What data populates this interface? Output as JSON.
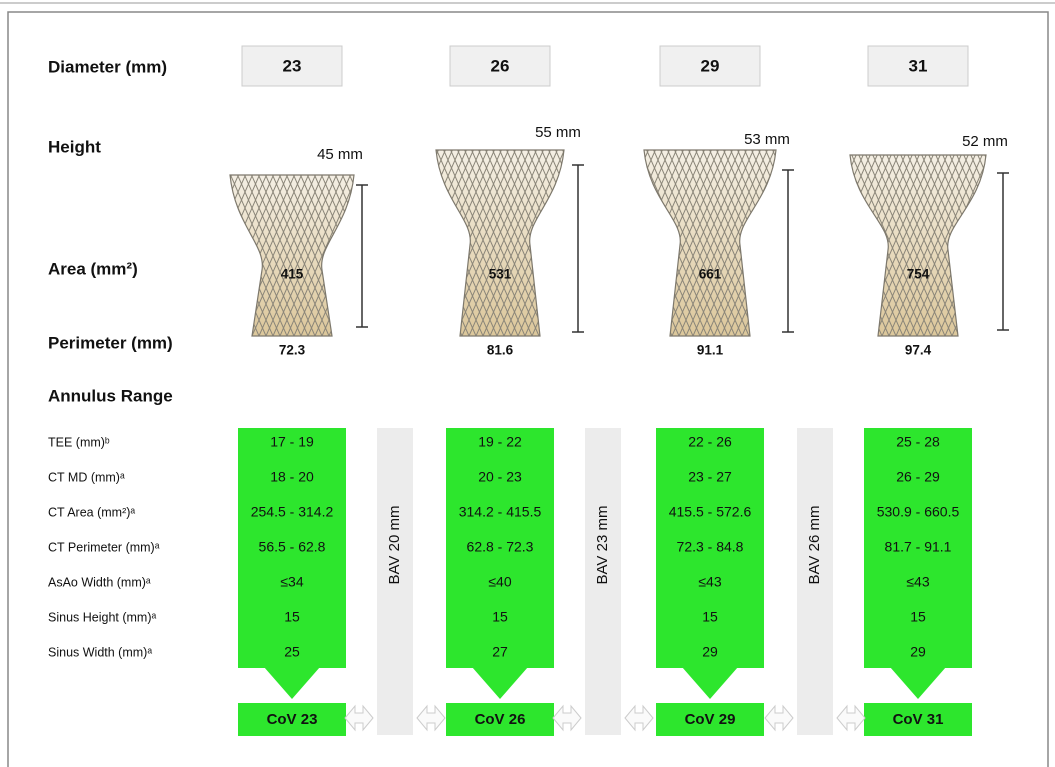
{
  "labels": {
    "diameter": "Diameter (mm)",
    "height": "Height",
    "area": "Area (mm²)",
    "perimeter": "Perimeter (mm)",
    "annulus": "Annulus Range"
  },
  "rows": [
    "TEE (mm)ᵇ",
    "CT MD (mm)ᵃ",
    "CT Area  (mm²)ᵃ",
    "CT Perimeter (mm)ᵃ",
    "AsAo Width (mm)ᵃ",
    "Sinus Height (mm)ᵃ",
    "Sinus Width (mm)ᵃ"
  ],
  "valves": [
    {
      "diameter": "23",
      "height": "45 mm",
      "area": "415",
      "perimeter": "72.3",
      "ranges": [
        "17 - 19",
        "18 - 20",
        "254.5 - 314.2",
        "56.5 - 62.8",
        "≤34",
        "15",
        "25"
      ],
      "cov": "CoV 23"
    },
    {
      "diameter": "26",
      "height": "55 mm",
      "area": "531",
      "perimeter": "81.6",
      "ranges": [
        "19 - 22",
        "20 - 23",
        "314.2 - 415.5",
        "62.8 - 72.3",
        "≤40",
        "15",
        "27"
      ],
      "cov": "CoV 26"
    },
    {
      "diameter": "29",
      "height": "53 mm",
      "area": "661",
      "perimeter": "91.1",
      "ranges": [
        "22 - 26",
        "23 - 27",
        "415.5 - 572.6",
        "72.3 - 84.8",
        "≤43",
        "15",
        "29"
      ],
      "cov": "CoV 29"
    },
    {
      "diameter": "31",
      "height": "52 mm",
      "area": "754",
      "perimeter": "97.4",
      "ranges": [
        "25 - 28",
        "26 - 29",
        "530.9 - 660.5",
        "81.7 - 91.1",
        "≤43",
        "15",
        "29"
      ],
      "cov": "CoV 31"
    }
  ],
  "bav": [
    "BAV 20 mm",
    "BAV 23 mm",
    "BAV 26 mm"
  ]
}
